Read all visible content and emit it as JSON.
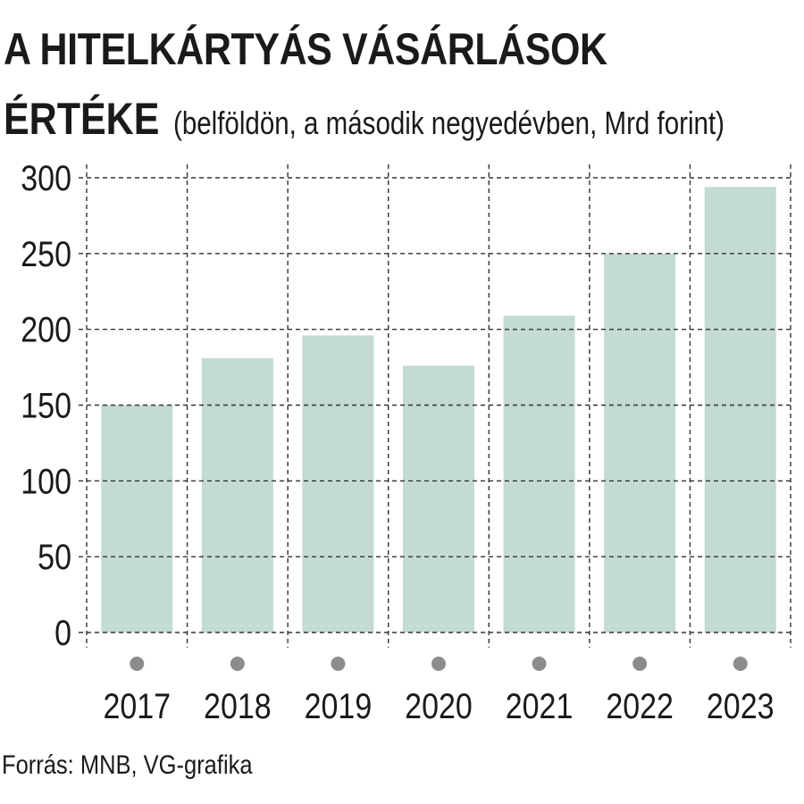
{
  "chart_data": {
    "type": "bar",
    "title_line1": "A HITELKÁRTYÁS VÁSÁRLÁSOK",
    "title_line2": "ÉRTÉKE",
    "subtitle": "(belföldön, a második negyedévben, Mrd forint)",
    "categories": [
      "2017",
      "2018",
      "2019",
      "2020",
      "2021",
      "2022",
      "2023"
    ],
    "values": [
      150,
      181,
      196,
      176,
      209,
      250,
      294
    ],
    "ylim": [
      0,
      300
    ],
    "yticks": [
      "0",
      "50",
      "100",
      "150",
      "200",
      "250",
      "300"
    ],
    "grid": true,
    "bar_color": "#c3dbd3",
    "grid_color": "#333333",
    "marker_color": "#8c8c8c"
  },
  "source": "Forrás: MNB, VG-grafika"
}
